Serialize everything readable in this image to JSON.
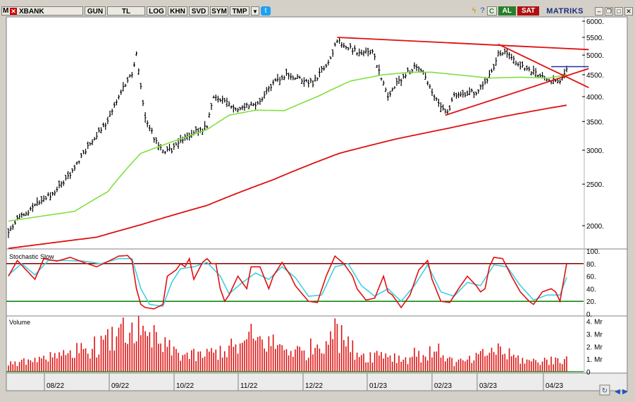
{
  "toolbar": {
    "symbol": "XBANK",
    "m_label": "M",
    "buttons": [
      "GUN",
      "TL",
      "LOG",
      "KHN",
      "SVD",
      "SYM",
      "TMP"
    ],
    "buy_label": "AL",
    "sell_label": "SAT",
    "brand": "MATRIKS",
    "c_label": "C"
  },
  "colors": {
    "price_bar": "#000000",
    "ma_short": "#80e040",
    "ma_long": "#e01010",
    "trendline": "#e01010",
    "stoch_k": "#e01010",
    "stoch_d": "#40d0e0",
    "stoch_upper": "#800000",
    "stoch_lower": "#008000",
    "volume_bar": "#e01010",
    "buy_bg": "#2a7f2a",
    "sell_bg": "#b01010"
  },
  "chart_data": [
    {
      "type": "bar",
      "subtype": "ohlc",
      "scale": "log",
      "x_tick_labels": [
        "08/22",
        "09/22",
        "10/22",
        "11/22",
        "12/22",
        "01/23",
        "02/23",
        "03/23",
        "04/23"
      ],
      "y_tick_labels": [
        "6000.",
        "5500.",
        "5000.",
        "4500.",
        "4000.",
        "3500.",
        "3000.",
        "2500.",
        "2000."
      ],
      "y_ticks": [
        6000,
        5500,
        5000,
        4500,
        4000,
        3500,
        3000,
        2500,
        2000
      ],
      "ylim": [
        1700,
        6200
      ],
      "close_anchors": [
        [
          0,
          1920
        ],
        [
          5,
          2100
        ],
        [
          12,
          2220
        ],
        [
          20,
          2380
        ],
        [
          28,
          2620
        ],
        [
          36,
          3050
        ],
        [
          44,
          3450
        ],
        [
          52,
          4200
        ],
        [
          56,
          4550
        ],
        [
          58,
          5000
        ],
        [
          60,
          4200
        ],
        [
          62,
          3600
        ],
        [
          66,
          3200
        ],
        [
          70,
          3000
        ],
        [
          74,
          3000
        ],
        [
          78,
          3150
        ],
        [
          84,
          3300
        ],
        [
          90,
          3400
        ],
        [
          93,
          4000
        ],
        [
          98,
          3950
        ],
        [
          104,
          3700
        ],
        [
          108,
          3800
        ],
        [
          114,
          3900
        ],
        [
          120,
          4300
        ],
        [
          126,
          4500
        ],
        [
          132,
          4400
        ],
        [
          138,
          4300
        ],
        [
          142,
          4600
        ],
        [
          146,
          4900
        ],
        [
          149,
          5400
        ],
        [
          154,
          5200
        ],
        [
          160,
          5050
        ],
        [
          165,
          5100
        ],
        [
          168,
          4600
        ],
        [
          172,
          4000
        ],
        [
          176,
          4300
        ],
        [
          180,
          4500
        ],
        [
          184,
          4700
        ],
        [
          188,
          4550
        ],
        [
          192,
          4100
        ],
        [
          196,
          3750
        ],
        [
          199,
          3650
        ],
        [
          202,
          4000
        ],
        [
          206,
          4050
        ],
        [
          212,
          4100
        ],
        [
          216,
          4350
        ],
        [
          219,
          4550
        ],
        [
          222,
          5050
        ],
        [
          226,
          5100
        ],
        [
          230,
          4800
        ],
        [
          234,
          4700
        ],
        [
          238,
          4550
        ],
        [
          242,
          4450
        ],
        [
          246,
          4380
        ],
        [
          250,
          4380
        ],
        [
          253,
          4650
        ]
      ],
      "ma_short_anchors": [
        [
          0,
          2050
        ],
        [
          30,
          2160
        ],
        [
          45,
          2400
        ],
        [
          60,
          2950
        ],
        [
          75,
          3150
        ],
        [
          90,
          3350
        ],
        [
          100,
          3620
        ],
        [
          112,
          3720
        ],
        [
          125,
          3710
        ],
        [
          140,
          4000
        ],
        [
          155,
          4350
        ],
        [
          170,
          4500
        ],
        [
          182,
          4560
        ],
        [
          192,
          4560
        ],
        [
          205,
          4490
        ],
        [
          218,
          4420
        ],
        [
          232,
          4440
        ],
        [
          245,
          4420
        ],
        [
          253,
          4500
        ]
      ],
      "ma_long_anchors": [
        [
          0,
          1770
        ],
        [
          40,
          1880
        ],
        [
          60,
          2010
        ],
        [
          90,
          2230
        ],
        [
          120,
          2560
        ],
        [
          150,
          2950
        ],
        [
          175,
          3180
        ],
        [
          200,
          3380
        ],
        [
          225,
          3600
        ],
        [
          245,
          3760
        ],
        [
          253,
          3820
        ]
      ],
      "trendlines": [
        {
          "from": [
            149,
            5500
          ],
          "to": [
            263,
            5150
          ]
        },
        {
          "from": [
            198,
            3620
          ],
          "to": [
            263,
            4650
          ]
        },
        {
          "from": [
            222,
            5300
          ],
          "to": [
            263,
            4200
          ]
        }
      ],
      "resistance_segment": {
        "from": [
          246,
          4700
        ],
        "to": [
          263,
          4700
        ]
      }
    },
    {
      "type": "line",
      "title": "Stochastic Slow",
      "y_tick_labels": [
        "100.",
        "80.",
        "60.",
        "40.",
        "20.",
        "0."
      ],
      "y_ticks": [
        100,
        80,
        60,
        40,
        20,
        0
      ],
      "ylim": [
        0,
        100
      ],
      "levels": [
        80,
        20
      ],
      "series": [
        {
          "key": "k",
          "anchors": [
            [
              0,
              60
            ],
            [
              4,
              85
            ],
            [
              8,
              70
            ],
            [
              12,
              55
            ],
            [
              16,
              88
            ],
            [
              22,
              84
            ],
            [
              28,
              90
            ],
            [
              34,
              82
            ],
            [
              40,
              75
            ],
            [
              46,
              85
            ],
            [
              50,
              92
            ],
            [
              54,
              93
            ],
            [
              56,
              85
            ],
            [
              58,
              40
            ],
            [
              60,
              15
            ],
            [
              62,
              10
            ],
            [
              66,
              8
            ],
            [
              70,
              15
            ],
            [
              72,
              60
            ],
            [
              76,
              70
            ],
            [
              78,
              80
            ],
            [
              80,
              75
            ],
            [
              82,
              88
            ],
            [
              84,
              55
            ],
            [
              88,
              82
            ],
            [
              90,
              88
            ],
            [
              92,
              80
            ],
            [
              94,
              80
            ],
            [
              96,
              40
            ],
            [
              98,
              20
            ],
            [
              100,
              30
            ],
            [
              104,
              60
            ],
            [
              108,
              40
            ],
            [
              110,
              75
            ],
            [
              114,
              75
            ],
            [
              118,
              40
            ],
            [
              120,
              60
            ],
            [
              124,
              82
            ],
            [
              128,
              60
            ],
            [
              130,
              45
            ],
            [
              136,
              20
            ],
            [
              140,
              18
            ],
            [
              144,
              60
            ],
            [
              148,
              92
            ],
            [
              152,
              80
            ],
            [
              156,
              60
            ],
            [
              158,
              40
            ],
            [
              162,
              22
            ],
            [
              166,
              25
            ],
            [
              170,
              60
            ],
            [
              172,
              35
            ],
            [
              174,
              30
            ],
            [
              178,
              10
            ],
            [
              182,
              30
            ],
            [
              186,
              70
            ],
            [
              190,
              85
            ],
            [
              192,
              55
            ],
            [
              196,
              20
            ],
            [
              200,
              18
            ],
            [
              204,
              40
            ],
            [
              208,
              60
            ],
            [
              212,
              45
            ],
            [
              214,
              35
            ],
            [
              216,
              40
            ],
            [
              218,
              75
            ],
            [
              220,
              90
            ],
            [
              224,
              88
            ],
            [
              228,
              60
            ],
            [
              232,
              35
            ],
            [
              236,
              20
            ],
            [
              238,
              15
            ],
            [
              242,
              35
            ],
            [
              246,
              40
            ],
            [
              248,
              35
            ],
            [
              250,
              20
            ],
            [
              253,
              80
            ]
          ]
        },
        {
          "key": "d",
          "anchors": [
            [
              0,
              62
            ],
            [
              6,
              80
            ],
            [
              12,
              62
            ],
            [
              18,
              85
            ],
            [
              26,
              85
            ],
            [
              34,
              84
            ],
            [
              42,
              80
            ],
            [
              50,
              88
            ],
            [
              56,
              88
            ],
            [
              60,
              40
            ],
            [
              64,
              15
            ],
            [
              70,
              12
            ],
            [
              74,
              50
            ],
            [
              78,
              72
            ],
            [
              84,
              75
            ],
            [
              90,
              82
            ],
            [
              96,
              60
            ],
            [
              100,
              32
            ],
            [
              106,
              50
            ],
            [
              112,
              65
            ],
            [
              118,
              55
            ],
            [
              124,
              75
            ],
            [
              130,
              58
            ],
            [
              136,
              28
            ],
            [
              142,
              30
            ],
            [
              148,
              75
            ],
            [
              154,
              80
            ],
            [
              160,
              45
            ],
            [
              166,
              28
            ],
            [
              172,
              40
            ],
            [
              178,
              20
            ],
            [
              184,
              45
            ],
            [
              190,
              78
            ],
            [
              196,
              35
            ],
            [
              202,
              28
            ],
            [
              208,
              50
            ],
            [
              214,
              45
            ],
            [
              220,
              78
            ],
            [
              226,
              75
            ],
            [
              232,
              45
            ],
            [
              238,
              22
            ],
            [
              244,
              30
            ],
            [
              250,
              30
            ],
            [
              253,
              58
            ]
          ]
        }
      ]
    },
    {
      "type": "bar",
      "title": "Volume",
      "y_tick_labels": [
        "4. Mr",
        "3. Mr",
        "2. Mr",
        "1. Mr",
        "0"
      ],
      "y_ticks": [
        4,
        3,
        2,
        1,
        0
      ],
      "ylim": [
        0,
        4.2
      ],
      "unit": "Mr",
      "volume_anchors": [
        [
          0,
          0.6
        ],
        [
          10,
          0.9
        ],
        [
          20,
          1.2
        ],
        [
          30,
          1.6
        ],
        [
          40,
          2.0
        ],
        [
          48,
          2.6
        ],
        [
          54,
          3.0
        ],
        [
          58,
          3.3
        ],
        [
          62,
          2.6
        ],
        [
          70,
          2.0
        ],
        [
          78,
          1.4
        ],
        [
          86,
          1.2
        ],
        [
          95,
          1.6
        ],
        [
          105,
          2.0
        ],
        [
          112,
          2.5
        ],
        [
          118,
          2.3
        ],
        [
          126,
          1.8
        ],
        [
          134,
          1.5
        ],
        [
          142,
          2.4
        ],
        [
          148,
          3.0
        ],
        [
          154,
          2.0
        ],
        [
          162,
          1.2
        ],
        [
          170,
          1.5
        ],
        [
          178,
          1.0
        ],
        [
          188,
          1.3
        ],
        [
          196,
          1.6
        ],
        [
          202,
          0.7
        ],
        [
          210,
          0.9
        ],
        [
          216,
          1.4
        ],
        [
          222,
          1.7
        ],
        [
          228,
          1.2
        ],
        [
          236,
          0.8
        ],
        [
          244,
          0.9
        ],
        [
          250,
          0.8
        ],
        [
          253,
          1.0
        ]
      ],
      "volume_spikes": [
        [
          50,
          3.5
        ],
        [
          52,
          4.3
        ],
        [
          56,
          3.9
        ],
        [
          60,
          2.9
        ],
        [
          66,
          3.7
        ],
        [
          110,
          3.8
        ],
        [
          146,
          3.2
        ],
        [
          149,
          3.8
        ],
        [
          151,
          3.7
        ],
        [
          184,
          1.9
        ],
        [
          194,
          1.6
        ],
        [
          219,
          1.9
        ],
        [
          223,
          2.0
        ],
        [
          246,
          1.2
        ],
        [
          252,
          1.0
        ]
      ]
    }
  ]
}
